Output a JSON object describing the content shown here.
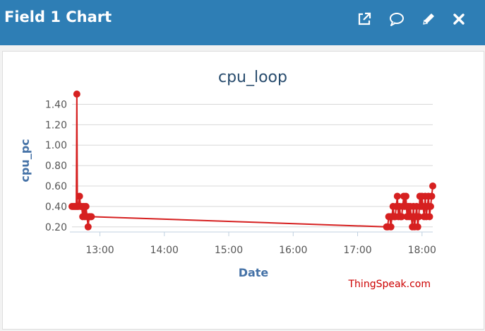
{
  "header": {
    "title": "Field 1 Chart",
    "icons": [
      "external-link-icon",
      "comment-icon",
      "pencil-icon",
      "close-icon"
    ]
  },
  "colors": {
    "header_bg": "#2e7eb5",
    "series": "#d62020",
    "title": "#274b6d",
    "axis_title": "#4572a7",
    "credit": "#cc0000"
  },
  "credit": "ThingSpeak.com",
  "chart_data": {
    "type": "line",
    "title": "cpu_loop",
    "xlabel": "Date",
    "ylabel": "cpu_pc",
    "xlim": [
      "12:34",
      "18:10"
    ],
    "ylim": [
      0.15,
      1.5
    ],
    "x_ticks": [
      "13:00",
      "14:00",
      "15:00",
      "16:00",
      "17:00",
      "18:00"
    ],
    "y_ticks": [
      "0.20",
      "0.40",
      "0.60",
      "0.80",
      "1.00",
      "1.20",
      "1.40"
    ],
    "grid": "horizontal",
    "legend": "none",
    "series": [
      {
        "x": [
          "12:34",
          "12:35",
          "12:36",
          "12:37",
          "12:38",
          "12:38:30",
          "12:39",
          "12:40",
          "12:41",
          "12:42",
          "12:43",
          "12:44",
          "12:45",
          "12:46",
          "12:47",
          "12:48",
          "12:49",
          "12:50",
          "12:51",
          "12:52",
          "17:27",
          "17:28",
          "17:29",
          "17:30",
          "17:31",
          "17:32",
          "17:33",
          "17:34",
          "17:35",
          "17:36",
          "17:37",
          "17:38",
          "17:39",
          "17:40",
          "17:41",
          "17:42",
          "17:43",
          "17:44",
          "17:45",
          "17:46",
          "17:47",
          "17:48",
          "17:49",
          "17:50",
          "17:51",
          "17:52",
          "17:53",
          "17:54",
          "17:55",
          "17:56",
          "17:57",
          "17:58",
          "17:59",
          "18:00",
          "18:01",
          "18:02",
          "18:03",
          "18:04",
          "18:05",
          "18:06",
          "18:07",
          "18:08",
          "18:09",
          "18:10"
        ],
        "y": [
          0.4,
          0.4,
          0.4,
          0.4,
          0.4,
          1.5,
          0.4,
          0.4,
          0.5,
          0.4,
          0.4,
          0.3,
          0.4,
          0.3,
          0.4,
          0.3,
          0.2,
          0.3,
          0.3,
          0.3,
          0.2,
          0.2,
          0.3,
          0.3,
          0.2,
          0.3,
          0.4,
          0.3,
          0.3,
          0.4,
          0.5,
          0.3,
          0.4,
          0.3,
          0.3,
          0.4,
          0.5,
          0.4,
          0.5,
          0.3,
          0.4,
          0.3,
          0.4,
          0.3,
          0.2,
          0.4,
          0.2,
          0.3,
          0.4,
          0.2,
          0.3,
          0.5,
          0.4,
          0.5,
          0.4,
          0.3,
          0.5,
          0.3,
          0.4,
          0.5,
          0.3,
          0.4,
          0.5,
          0.6
        ]
      }
    ]
  }
}
